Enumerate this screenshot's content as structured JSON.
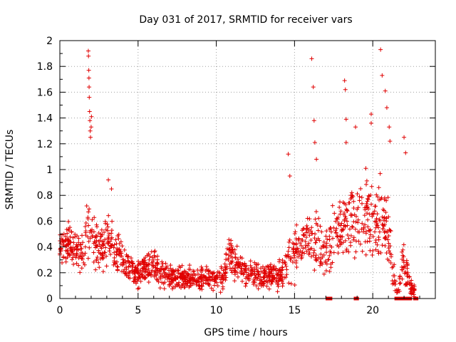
{
  "chart_data": {
    "type": "scatter",
    "title": "Day 031 of 2017, SRMTID for receiver vars",
    "xlabel": "GPS time / hours",
    "ylabel": "SRMTID / TECUs",
    "xlim": [
      0,
      24
    ],
    "ylim": [
      0,
      2
    ],
    "x_ticks": [
      0,
      5,
      10,
      15,
      20
    ],
    "x_tick_labels": [
      "0",
      "5",
      "10",
      "15",
      "20"
    ],
    "y_ticks": [
      0,
      0.2,
      0.4,
      0.6,
      0.8,
      1,
      1.2,
      1.4,
      1.6,
      1.8,
      2
    ],
    "y_tick_labels": [
      "0",
      "0.2",
      "0.4",
      "0.6",
      "0.8",
      "1",
      "1.2",
      "1.4",
      "1.6",
      "1.8",
      "2"
    ],
    "grid": true,
    "marker": "+",
    "series_color": "#e00000",
    "profile_hours": [
      0,
      0.5,
      1,
      1.5,
      1.8,
      2,
      2.5,
      3,
      3.5,
      4,
      4.5,
      5,
      5.5,
      6,
      6.5,
      7,
      7.5,
      8,
      8.5,
      9,
      9.5,
      10,
      10.5,
      10.8,
      11,
      11.5,
      12,
      12.5,
      13,
      13.5,
      14,
      14.5,
      15,
      15.5,
      16,
      16.5,
      17,
      17.5,
      18,
      18.5,
      19,
      19.5,
      20,
      20.5,
      21,
      21.3,
      21.6,
      22,
      22.4,
      22.7
    ],
    "profile_center": [
      0.4,
      0.42,
      0.38,
      0.33,
      0.55,
      0.45,
      0.38,
      0.48,
      0.38,
      0.3,
      0.22,
      0.2,
      0.25,
      0.24,
      0.19,
      0.17,
      0.16,
      0.15,
      0.17,
      0.15,
      0.16,
      0.15,
      0.18,
      0.35,
      0.3,
      0.22,
      0.2,
      0.19,
      0.18,
      0.18,
      0.18,
      0.25,
      0.35,
      0.42,
      0.48,
      0.4,
      0.35,
      0.5,
      0.6,
      0.62,
      0.6,
      0.65,
      0.62,
      0.6,
      0.55,
      0.2,
      0.05,
      0.3,
      0.1,
      0.05
    ],
    "profile_spread": [
      0.12,
      0.14,
      0.15,
      0.15,
      0.25,
      0.18,
      0.15,
      0.2,
      0.15,
      0.12,
      0.1,
      0.1,
      0.12,
      0.12,
      0.1,
      0.08,
      0.08,
      0.07,
      0.08,
      0.08,
      0.08,
      0.08,
      0.1,
      0.15,
      0.15,
      0.1,
      0.1,
      0.09,
      0.09,
      0.09,
      0.09,
      0.12,
      0.18,
      0.18,
      0.2,
      0.18,
      0.18,
      0.22,
      0.25,
      0.25,
      0.25,
      0.28,
      0.28,
      0.28,
      0.25,
      0.15,
      0.05,
      0.15,
      0.08,
      0.03
    ],
    "peak_points": [
      [
        1.82,
        1.92
      ],
      [
        1.83,
        1.88
      ],
      [
        1.85,
        1.77
      ],
      [
        1.86,
        1.71
      ],
      [
        1.87,
        1.64
      ],
      [
        1.88,
        1.56
      ],
      [
        1.9,
        1.45
      ],
      [
        1.92,
        1.38
      ],
      [
        1.94,
        1.3
      ],
      [
        1.96,
        1.25
      ],
      [
        2.0,
        1.33
      ],
      [
        2.02,
        1.41
      ],
      [
        3.1,
        0.92
      ],
      [
        3.3,
        0.85
      ],
      [
        14.6,
        1.12
      ],
      [
        14.7,
        0.95
      ],
      [
        16.1,
        1.86
      ],
      [
        16.2,
        1.64
      ],
      [
        16.25,
        1.38
      ],
      [
        16.3,
        1.21
      ],
      [
        16.4,
        1.08
      ],
      [
        18.2,
        1.69
      ],
      [
        18.25,
        1.62
      ],
      [
        18.3,
        1.39
      ],
      [
        18.3,
        1.21
      ],
      [
        18.9,
        1.33
      ],
      [
        19.9,
        1.43
      ],
      [
        19.9,
        1.36
      ],
      [
        20.5,
        1.93
      ],
      [
        20.6,
        1.73
      ],
      [
        20.8,
        1.61
      ],
      [
        20.9,
        1.48
      ],
      [
        21.05,
        1.33
      ],
      [
        21.1,
        1.22
      ],
      [
        22.0,
        1.25
      ],
      [
        22.1,
        1.13
      ]
    ],
    "zero_points": [
      17.1,
      17.2,
      17.3,
      18.9,
      19.0,
      21.5,
      21.6,
      21.8,
      22.0,
      22.1,
      22.3,
      22.4,
      22.7,
      22.8
    ],
    "sample_count": 1500
  }
}
